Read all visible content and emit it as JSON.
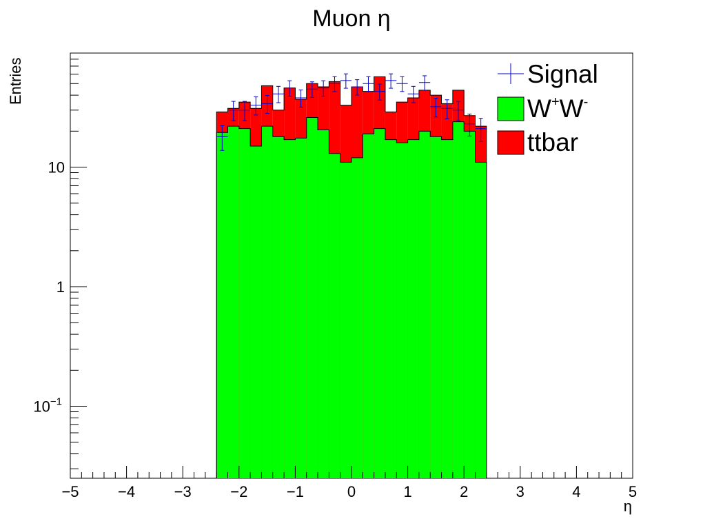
{
  "chart_data": {
    "type": "bar",
    "title": "Muon η",
    "xlabel": "η",
    "ylabel": "Entries",
    "xlim": [
      -5,
      5
    ],
    "ylim": [
      0.025,
      90
    ],
    "yscale": "log",
    "grid": false,
    "legend_position": "top-right",
    "x_ticks": [
      "−5",
      "−4",
      "−3",
      "−2",
      "−1",
      "0",
      "1",
      "2",
      "3",
      "4",
      "5"
    ],
    "y_ticks": [
      {
        "value": 10,
        "label": "10"
      },
      {
        "value": 1,
        "label": "1"
      },
      {
        "value": 0.1,
        "label": "10",
        "exponent": "−1"
      }
    ],
    "bin_edges": [
      -2.4,
      -2.2,
      -2.0,
      -1.8,
      -1.6,
      -1.4,
      -1.2,
      -1.0,
      -0.8,
      -0.6,
      -0.4,
      -0.2,
      0.0,
      0.2,
      0.4,
      0.6,
      0.8,
      1.0,
      1.2,
      1.4,
      1.6,
      1.8,
      2.0,
      2.2,
      2.4
    ],
    "series": [
      {
        "name": "W⁺W⁻",
        "kind": "stacked-fill",
        "color": "#00ff00",
        "values": [
          19.5,
          22,
          21,
          15,
          22,
          18,
          17,
          17.5,
          26,
          20.5,
          13,
          11,
          12,
          19,
          21,
          17,
          16,
          17,
          20,
          18,
          17,
          24,
          20,
          11
        ]
      },
      {
        "name": "ttbar",
        "kind": "stacked-fill",
        "color": "#ff0000",
        "stack_totals": [
          29,
          31,
          35,
          31,
          48,
          30,
          46,
          37,
          50,
          47,
          52,
          33,
          47,
          43,
          57,
          29,
          35,
          38,
          44,
          40,
          34,
          44,
          27,
          22
        ]
      },
      {
        "name": "Signal",
        "kind": "points",
        "color": "#0000cc",
        "values": [
          18,
          30,
          30,
          33,
          34,
          41,
          46,
          38,
          45,
          46,
          50,
          53,
          47,
          50,
          43,
          53,
          50,
          41,
          51,
          32,
          31,
          30,
          23,
          21
        ],
        "errors": [
          4.2,
          5.5,
          5.5,
          5.7,
          5.8,
          6.4,
          6.8,
          6.2,
          6.7,
          6.8,
          7.1,
          7.3,
          6.9,
          7.1,
          6.6,
          7.3,
          7.1,
          6.4,
          7.1,
          5.7,
          5.6,
          5.5,
          4.8,
          4.6
        ]
      }
    ],
    "legend": {
      "signal": "Signal",
      "ww_base": "W",
      "ww_sup1": "+",
      "ww_sup2": "-",
      "ttbar": "ttbar"
    }
  }
}
